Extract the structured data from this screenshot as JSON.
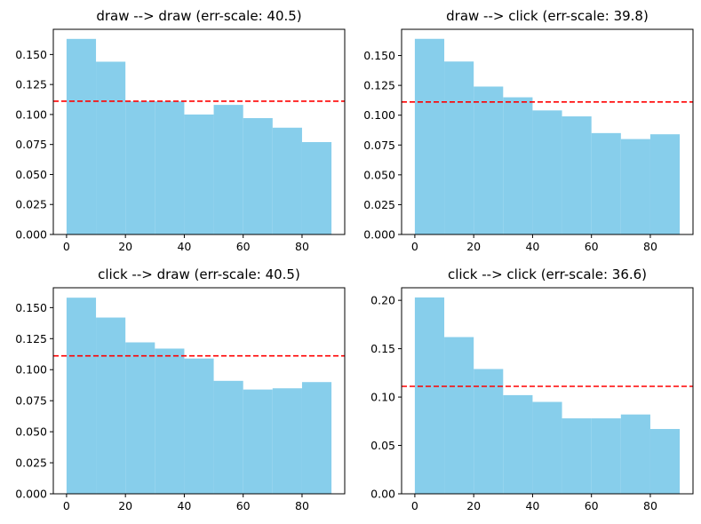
{
  "colors": {
    "bar": "#87ceeb",
    "reference_line": "#ff0000",
    "axes": "#000000"
  },
  "chart_data": [
    {
      "type": "bar",
      "title": "draw --> draw (err-scale: 40.5)",
      "xlabel": "",
      "ylabel": "",
      "bin_edges": [
        0,
        10,
        20,
        30,
        40,
        50,
        60,
        70,
        80,
        90
      ],
      "values": [
        0.163,
        0.144,
        0.111,
        0.111,
        0.1,
        0.108,
        0.097,
        0.089,
        0.077
      ],
      "reference_line": 0.1111,
      "xlim": [
        -4.5,
        94.5
      ],
      "ylim": [
        0,
        0.171
      ],
      "xticks": [
        0,
        20,
        40,
        60,
        80
      ],
      "xtick_labels": [
        "0",
        "20",
        "40",
        "60",
        "80"
      ],
      "yticks": [
        0,
        0.025,
        0.05,
        0.075,
        0.1,
        0.125,
        0.15
      ],
      "ytick_labels": [
        "0.000",
        "0.025",
        "0.050",
        "0.075",
        "0.100",
        "0.125",
        "0.150"
      ],
      "grid": false
    },
    {
      "type": "bar",
      "title": "draw --> click (err-scale: 39.8)",
      "xlabel": "",
      "ylabel": "",
      "bin_edges": [
        0,
        10,
        20,
        30,
        40,
        50,
        60,
        70,
        80,
        90
      ],
      "values": [
        0.164,
        0.145,
        0.124,
        0.115,
        0.104,
        0.099,
        0.085,
        0.08,
        0.084
      ],
      "reference_line": 0.1111,
      "xlim": [
        -4.5,
        94.5
      ],
      "ylim": [
        0,
        0.172
      ],
      "xticks": [
        0,
        20,
        40,
        60,
        80
      ],
      "xtick_labels": [
        "0",
        "20",
        "40",
        "60",
        "80"
      ],
      "yticks": [
        0,
        0.025,
        0.05,
        0.075,
        0.1,
        0.125,
        0.15
      ],
      "ytick_labels": [
        "0.000",
        "0.025",
        "0.050",
        "0.075",
        "0.100",
        "0.125",
        "0.150"
      ],
      "grid": false
    },
    {
      "type": "bar",
      "title": "click --> draw (err-scale: 40.5)",
      "xlabel": "",
      "ylabel": "",
      "bin_edges": [
        0,
        10,
        20,
        30,
        40,
        50,
        60,
        70,
        80,
        90
      ],
      "values": [
        0.158,
        0.142,
        0.122,
        0.117,
        0.109,
        0.091,
        0.084,
        0.085,
        0.09
      ],
      "reference_line": 0.1111,
      "xlim": [
        -4.5,
        94.5
      ],
      "ylim": [
        0,
        0.166
      ],
      "xticks": [
        0,
        20,
        40,
        60,
        80
      ],
      "xtick_labels": [
        "0",
        "20",
        "40",
        "60",
        "80"
      ],
      "yticks": [
        0,
        0.025,
        0.05,
        0.075,
        0.1,
        0.125,
        0.15
      ],
      "ytick_labels": [
        "0.000",
        "0.025",
        "0.050",
        "0.075",
        "0.100",
        "0.125",
        "0.150"
      ],
      "grid": false
    },
    {
      "type": "bar",
      "title": "click --> click (err-scale: 36.6)",
      "xlabel": "",
      "ylabel": "",
      "bin_edges": [
        0,
        10,
        20,
        30,
        40,
        50,
        60,
        70,
        80,
        90
      ],
      "values": [
        0.203,
        0.162,
        0.129,
        0.102,
        0.095,
        0.078,
        0.078,
        0.082,
        0.067
      ],
      "reference_line": 0.1111,
      "xlim": [
        -4.5,
        94.5
      ],
      "ylim": [
        0,
        0.213
      ],
      "xticks": [
        0,
        20,
        40,
        60,
        80
      ],
      "xtick_labels": [
        "0",
        "20",
        "40",
        "60",
        "80"
      ],
      "yticks": [
        0,
        0.05,
        0.1,
        0.15,
        0.2
      ],
      "ytick_labels": [
        "0.00",
        "0.05",
        "0.10",
        "0.15",
        "0.20"
      ],
      "grid": false
    }
  ]
}
